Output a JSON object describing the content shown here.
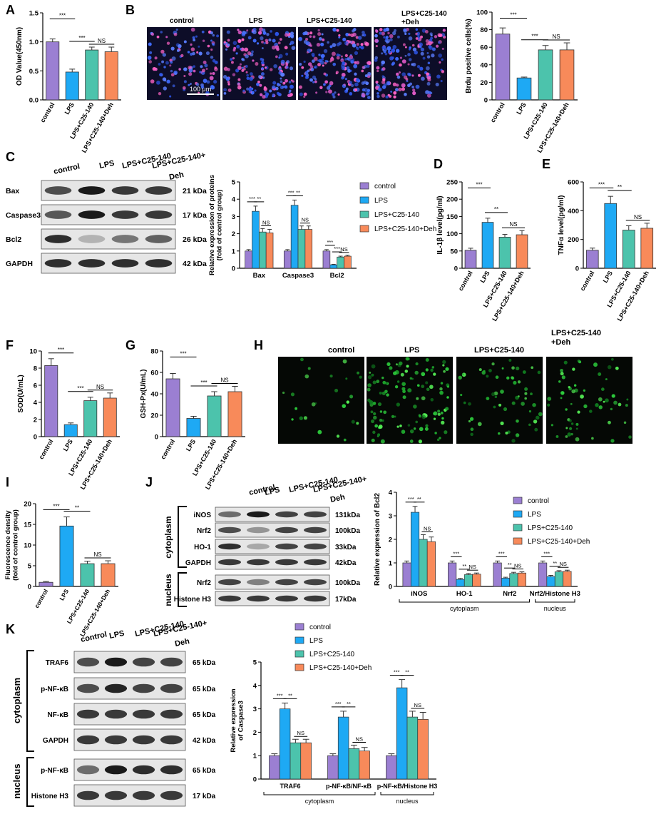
{
  "colors": {
    "control": "#9b7fd2",
    "lps": "#1ea9f4",
    "c25": "#4cc3ac",
    "deh": "#f88a5a",
    "blot_bg": "#e6e6e6",
    "micro_blue_bg": "#0d0d28",
    "micro_green_bg": "#050805"
  },
  "group_labels": [
    "control",
    "LPS",
    "LPS+C25-140",
    "LPS+C25-140+Deh"
  ],
  "legend_labels": [
    "control",
    "LPS",
    "LPS+C25-140",
    "LPS+C25-140+Deh"
  ],
  "panels": {
    "A": {
      "letter": "A"
    },
    "B": {
      "letter": "B"
    },
    "C": {
      "letter": "C"
    },
    "D": {
      "letter": "D"
    },
    "E": {
      "letter": "E"
    },
    "F": {
      "letter": "F"
    },
    "G": {
      "letter": "G"
    },
    "H": {
      "letter": "H"
    },
    "I": {
      "letter": "I"
    },
    "J": {
      "letter": "J"
    },
    "K": {
      "letter": "K"
    }
  },
  "micrographs": {
    "B_labels": [
      "control",
      "LPS",
      "LPS+C25-140",
      "LPS+C25-140",
      "+Deh"
    ],
    "H_labels": [
      "control",
      "LPS",
      "LPS+C25-140",
      "LPS+C25-140",
      "+Deh"
    ],
    "scale_bar": "100 μm"
  },
  "blots": {
    "C": {
      "lane_labels": [
        "control",
        "LPS",
        "LPS+C25-140",
        "LPS+C25-140+",
        "Deh"
      ],
      "rows": [
        {
          "name": "Bax",
          "kda": "21 kDa"
        },
        {
          "name": "Caspase3",
          "kda": "17 kDa"
        },
        {
          "name": "Bcl2",
          "kda": "26 kDa"
        },
        {
          "name": "GAPDH",
          "kda": "42 kDa"
        }
      ]
    },
    "J": {
      "lane_labels": [
        "control",
        "LPS",
        "LPS+C25-140",
        "LPS+C25-140+",
        "Deh"
      ],
      "compartments": [
        "cytoplasm",
        "nucleus"
      ],
      "rows": [
        {
          "name": "iNOS",
          "kda": "131kDa"
        },
        {
          "name": "Nrf2",
          "kda": "100kDa"
        },
        {
          "name": "HO-1",
          "kda": "33kDa"
        },
        {
          "name": "GAPDH",
          "kda": "42kDa"
        },
        {
          "name": "Nrf2",
          "kda": "100kDa"
        },
        {
          "name": "Histone H3",
          "kda": "17kDa"
        }
      ]
    },
    "K": {
      "lane_labels": [
        "control",
        "LPS",
        "LPS+C25-140",
        "LPS+C25-140+",
        "Deh"
      ],
      "compartments": [
        "cytoplasm",
        "nucleus"
      ],
      "rows": [
        {
          "name": "TRAF6",
          "kda": "65 kDa"
        },
        {
          "name": "p-NF-κB",
          "kda": "65 kDa"
        },
        {
          "name": "NF-κB",
          "kda": "65 kDa"
        },
        {
          "name": "GAPDH",
          "kda": "42 kDa"
        },
        {
          "name": "p-NF-κB",
          "kda": "65 kDa"
        },
        {
          "name": "Histone H3",
          "kda": "17 kDa"
        }
      ]
    }
  },
  "chart_data": [
    {
      "id": "A",
      "type": "bar",
      "ylabel": "OD Value(450nm)",
      "categories": [
        "control",
        "LPS",
        "LPS+C25-140",
        "LPS+C25-140+Deh"
      ],
      "values": [
        1.0,
        0.48,
        0.86,
        0.83
      ],
      "errors": [
        0.05,
        0.05,
        0.05,
        0.08
      ],
      "ylim": [
        0,
        1.5
      ],
      "yticks": [
        "0.0",
        "0.5",
        "1.0",
        "1.5"
      ],
      "sig": [
        {
          "a": 0,
          "b": 1,
          "label": "***"
        },
        {
          "a": 1,
          "b": 2,
          "label": "***"
        },
        {
          "a": 2,
          "b": 3,
          "label": "NS"
        }
      ]
    },
    {
      "id": "B",
      "type": "bar",
      "ylabel": "Brdu positive cells(%)",
      "categories": [
        "control",
        "LPS",
        "LPS+C25-140",
        "LPS+C25-140+Deh"
      ],
      "values": [
        75,
        25,
        57,
        57
      ],
      "errors": [
        7,
        1,
        5,
        8
      ],
      "ylim": [
        0,
        100
      ],
      "yticks": [
        "0",
        "20",
        "40",
        "60",
        "80",
        "100"
      ],
      "sig": [
        {
          "a": 0,
          "b": 1,
          "label": "***"
        },
        {
          "a": 1,
          "b": 2,
          "label": "***"
        },
        {
          "a": 2,
          "b": 3,
          "label": "NS"
        }
      ]
    },
    {
      "id": "C",
      "type": "bar",
      "ylabel_lines": [
        "Relative expression of proteins",
        "(fold of control group)"
      ],
      "categories": [
        "Bax",
        "Caspase3",
        "Bcl2"
      ],
      "series": [
        {
          "name": "control",
          "values": [
            1.0,
            1.0,
            1.0
          ],
          "errors": [
            0.08,
            0.08,
            0.08
          ]
        },
        {
          "name": "LPS",
          "values": [
            3.3,
            3.65,
            0.2
          ],
          "errors": [
            0.3,
            0.3,
            0.03
          ]
        },
        {
          "name": "LPS+C25-140",
          "values": [
            2.1,
            2.25,
            0.65
          ],
          "errors": [
            0.2,
            0.2,
            0.05
          ]
        },
        {
          "name": "LPS+C25-140+Deh",
          "values": [
            2.05,
            2.25,
            0.7
          ],
          "errors": [
            0.2,
            0.2,
            0.05
          ]
        }
      ],
      "ylim": [
        0,
        5
      ],
      "yticks": [
        "0",
        "1",
        "2",
        "3",
        "4",
        "5"
      ],
      "sig": [
        {
          "cat": 0,
          "a": 0,
          "b": 1,
          "label": "***"
        },
        {
          "cat": 0,
          "a": 1,
          "b": 2,
          "label": "**"
        },
        {
          "cat": 0,
          "a": 2,
          "b": 3,
          "label": "NS"
        },
        {
          "cat": 1,
          "a": 0,
          "b": 1,
          "label": "***"
        },
        {
          "cat": 1,
          "a": 1,
          "b": 2,
          "label": "**"
        },
        {
          "cat": 1,
          "a": 2,
          "b": 3,
          "label": "NS"
        },
        {
          "cat": 2,
          "a": 0,
          "b": 1,
          "label": "***"
        },
        {
          "cat": 2,
          "a": 1,
          "b": 2,
          "label": "***"
        },
        {
          "cat": 2,
          "a": 2,
          "b": 3,
          "label": "NS"
        }
      ]
    },
    {
      "id": "D",
      "type": "bar",
      "ylabel": "IL-1β level(pg/ml)",
      "categories": [
        "control",
        "LPS",
        "LPS+C25-140",
        "LPS+C25-140+Deh"
      ],
      "values": [
        52,
        133,
        90,
        97
      ],
      "errors": [
        6,
        12,
        8,
        12
      ],
      "ylim": [
        0,
        250
      ],
      "yticks": [
        "0",
        "50",
        "100",
        "150",
        "200",
        "250"
      ],
      "sig": [
        {
          "a": 0,
          "b": 1,
          "label": "***"
        },
        {
          "a": 1,
          "b": 2,
          "label": "**"
        },
        {
          "a": 2,
          "b": 3,
          "label": "NS"
        }
      ]
    },
    {
      "id": "E",
      "type": "bar",
      "ylabel": "TNFα level(pg/ml)",
      "categories": [
        "control",
        "LPS",
        "LPS+C25-140",
        "LPS+C25-140+Deh"
      ],
      "values": [
        125,
        450,
        265,
        278
      ],
      "errors": [
        15,
        50,
        30,
        35
      ],
      "ylim": [
        0,
        600
      ],
      "yticks": [
        "0",
        "200",
        "400",
        "600"
      ],
      "sig": [
        {
          "a": 0,
          "b": 1,
          "label": "***"
        },
        {
          "a": 1,
          "b": 2,
          "label": "**"
        },
        {
          "a": 2,
          "b": 3,
          "label": "NS"
        }
      ]
    },
    {
      "id": "F",
      "type": "bar",
      "ylabel": "SOD(U/mL)",
      "categories": [
        "control",
        "LPS",
        "LPS+C25-140",
        "LPS+C25-140+Deh"
      ],
      "values": [
        8.3,
        1.4,
        4.2,
        4.5
      ],
      "errors": [
        0.8,
        0.2,
        0.4,
        0.6
      ],
      "ylim": [
        0,
        10
      ],
      "yticks": [
        "0",
        "2",
        "4",
        "6",
        "8",
        "10"
      ],
      "sig": [
        {
          "a": 0,
          "b": 1,
          "label": "***"
        },
        {
          "a": 1,
          "b": 2,
          "label": "***"
        },
        {
          "a": 2,
          "b": 3,
          "label": "NS"
        }
      ]
    },
    {
      "id": "G",
      "type": "bar",
      "ylabel": "GSH-Px(U/mL)",
      "categories": [
        "control",
        "LPS",
        "LPS+C25-140",
        "LPS+C25-140+Deh"
      ],
      "values": [
        54,
        17,
        38,
        42
      ],
      "errors": [
        5,
        2,
        4,
        5
      ],
      "ylim": [
        0,
        80
      ],
      "yticks": [
        "0",
        "20",
        "40",
        "60",
        "80"
      ],
      "sig": [
        {
          "a": 0,
          "b": 1,
          "label": "***"
        },
        {
          "a": 1,
          "b": 2,
          "label": "***"
        },
        {
          "a": 2,
          "b": 3,
          "label": "NS"
        }
      ]
    },
    {
      "id": "I",
      "type": "bar",
      "ylabel_lines": [
        "Fluorescence density",
        "(fold of control group)"
      ],
      "categories": [
        "control",
        "LPS",
        "LPS+C25-140",
        "LPS+C25-140+Deh"
      ],
      "values": [
        1.0,
        14.6,
        5.5,
        5.5
      ],
      "errors": [
        0.2,
        2.2,
        0.6,
        0.7
      ],
      "ylim": [
        0,
        20
      ],
      "yticks": [
        "0",
        "5",
        "10",
        "15",
        "20"
      ],
      "sig": [
        {
          "a": 0,
          "b": 1,
          "label": "***"
        },
        {
          "a": 1,
          "b": 2,
          "label": "**"
        },
        {
          "a": 2,
          "b": 3,
          "label": "NS"
        }
      ]
    },
    {
      "id": "J",
      "type": "bar",
      "ylabel": "Relative expression of Bcl2",
      "categories": [
        "iNOS",
        "HO-1",
        "Nrf2",
        "Nrf2/Histone H3"
      ],
      "series": [
        {
          "name": "control",
          "values": [
            1.0,
            1.0,
            1.0,
            1.0
          ],
          "errors": [
            0.08,
            0.08,
            0.08,
            0.08
          ]
        },
        {
          "name": "LPS",
          "values": [
            3.15,
            0.3,
            0.35,
            0.42
          ],
          "errors": [
            0.25,
            0.04,
            0.04,
            0.05
          ]
        },
        {
          "name": "LPS+C25-140",
          "values": [
            2.0,
            0.5,
            0.55,
            0.62
          ],
          "errors": [
            0.2,
            0.05,
            0.05,
            0.05
          ]
        },
        {
          "name": "LPS+C25-140+Deh",
          "values": [
            1.9,
            0.52,
            0.57,
            0.64
          ],
          "errors": [
            0.2,
            0.05,
            0.05,
            0.05
          ]
        }
      ],
      "ylim": [
        0,
        4
      ],
      "yticks": [
        "0",
        "1",
        "2",
        "3",
        "4"
      ],
      "sig": [
        {
          "cat": 0,
          "a": 0,
          "b": 1,
          "label": "***"
        },
        {
          "cat": 0,
          "a": 1,
          "b": 2,
          "label": "**"
        },
        {
          "cat": 0,
          "a": 2,
          "b": 3,
          "label": "NS"
        },
        {
          "cat": 1,
          "a": 0,
          "b": 1,
          "label": "***"
        },
        {
          "cat": 1,
          "a": 1,
          "b": 2,
          "label": "**"
        },
        {
          "cat": 1,
          "a": 2,
          "b": 3,
          "label": "NS"
        },
        {
          "cat": 2,
          "a": 0,
          "b": 1,
          "label": "***"
        },
        {
          "cat": 2,
          "a": 1,
          "b": 2,
          "label": "**"
        },
        {
          "cat": 2,
          "a": 2,
          "b": 3,
          "label": "NS"
        },
        {
          "cat": 3,
          "a": 0,
          "b": 1,
          "label": "***"
        },
        {
          "cat": 3,
          "a": 1,
          "b": 2,
          "label": "**"
        },
        {
          "cat": 3,
          "a": 2,
          "b": 3,
          "label": "NS"
        }
      ],
      "group_brackets": [
        {
          "label": "cytoplasm",
          "from": 0,
          "to": 2
        },
        {
          "label": "nucleus",
          "from": 3,
          "to": 3
        }
      ]
    },
    {
      "id": "K",
      "type": "bar",
      "ylabel_lines": [
        "Relative expression",
        "of Caspase3"
      ],
      "categories": [
        "TRAF6",
        "p-NF-κB/NF-κB",
        "p-NF-κB/Histone H3"
      ],
      "series": [
        {
          "name": "control",
          "values": [
            1.0,
            1.0,
            1.0
          ],
          "errors": [
            0.08,
            0.08,
            0.08
          ]
        },
        {
          "name": "LPS",
          "values": [
            3.0,
            2.65,
            3.9
          ],
          "errors": [
            0.25,
            0.25,
            0.35
          ]
        },
        {
          "name": "LPS+C25-140",
          "values": [
            1.55,
            1.3,
            2.65
          ],
          "errors": [
            0.15,
            0.15,
            0.25
          ]
        },
        {
          "name": "LPS+C25-140+Deh",
          "values": [
            1.55,
            1.2,
            2.55
          ],
          "errors": [
            0.15,
            0.15,
            0.3
          ]
        }
      ],
      "ylim": [
        0,
        5
      ],
      "yticks": [
        "0",
        "1",
        "2",
        "3",
        "4",
        "5"
      ],
      "sig": [
        {
          "cat": 0,
          "a": 0,
          "b": 1,
          "label": "***"
        },
        {
          "cat": 0,
          "a": 1,
          "b": 2,
          "label": "**"
        },
        {
          "cat": 0,
          "a": 2,
          "b": 3,
          "label": "NS"
        },
        {
          "cat": 1,
          "a": 0,
          "b": 1,
          "label": "***"
        },
        {
          "cat": 1,
          "a": 1,
          "b": 2,
          "label": "**"
        },
        {
          "cat": 1,
          "a": 2,
          "b": 3,
          "label": "NS"
        },
        {
          "cat": 2,
          "a": 0,
          "b": 1,
          "label": "***"
        },
        {
          "cat": 2,
          "a": 1,
          "b": 2,
          "label": "**"
        },
        {
          "cat": 2,
          "a": 2,
          "b": 3,
          "label": "NS"
        }
      ],
      "group_brackets": [
        {
          "label": "cytoplasm",
          "from": 0,
          "to": 1
        },
        {
          "label": "nucleus",
          "from": 2,
          "to": 2
        }
      ]
    }
  ]
}
